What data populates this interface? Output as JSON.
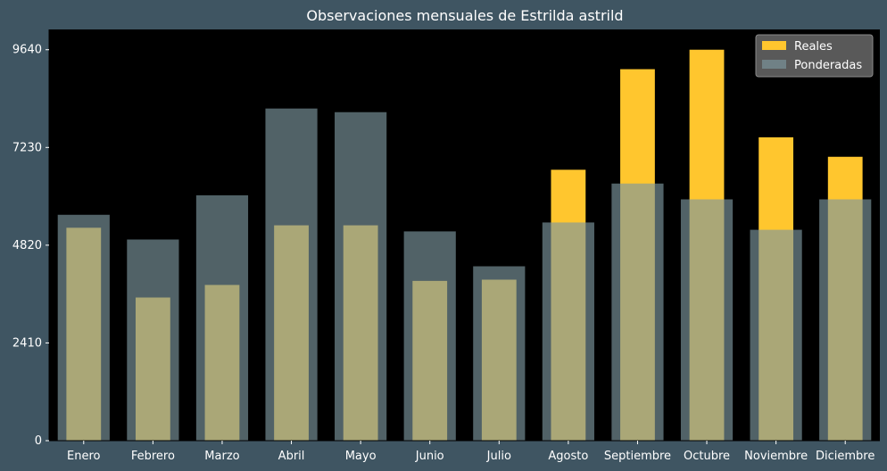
{
  "chart_data": {
    "type": "bar",
    "title": "Observaciones mensuales de Estrilda astrild",
    "xlabel": "",
    "ylabel": "",
    "categories": [
      "Enero",
      "Febrero",
      "Marzo",
      "Abril",
      "Mayo",
      "Junio",
      "Julio",
      "Agosto",
      "Septiembre",
      "Octubre",
      "Noviembre",
      "Diciembre"
    ],
    "series": [
      {
        "name": "Reales",
        "color": "#ffc62e",
        "values": [
          5250,
          3530,
          3840,
          5310,
          5310,
          3940,
          3970,
          6680,
          9160,
          9640,
          7480,
          7000
        ]
      },
      {
        "name": "Ponderadas",
        "color": "#7d969e",
        "opacity": 0.65,
        "values": [
          5570,
          4960,
          6050,
          8190,
          8100,
          5160,
          4300,
          5380,
          6340,
          5950,
          5200,
          5950
        ]
      }
    ],
    "ylim": [
      0,
      10140
    ],
    "yticks": [
      0,
      2410,
      4820,
      7230,
      9640
    ],
    "grid": false,
    "legend_position": "top-right",
    "plot_background": "#000000",
    "figure_background": "#3f5562",
    "text_color": "#ffffff"
  }
}
